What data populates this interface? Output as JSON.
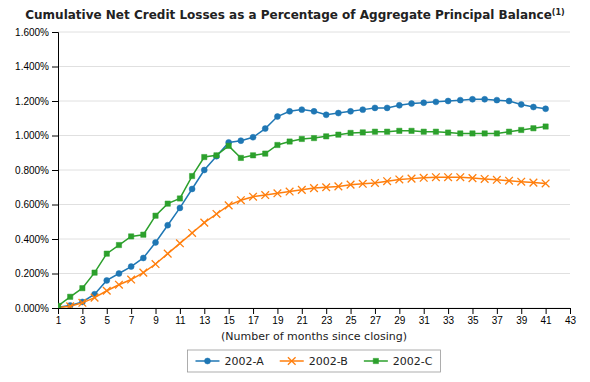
{
  "chart_data": {
    "type": "line",
    "title": "Cumulative Net Credit Losses as a Percentage of Aggregate Principal Balance",
    "annotations": [
      "(1)"
    ],
    "x_label": "(Number of months since closing)",
    "x": [
      1,
      2,
      3,
      4,
      5,
      6,
      7,
      8,
      9,
      10,
      11,
      12,
      13,
      14,
      15,
      16,
      17,
      18,
      19,
      20,
      21,
      22,
      23,
      24,
      25,
      26,
      27,
      28,
      29,
      30,
      31,
      32,
      33,
      34,
      35,
      36,
      37,
      38,
      39,
      40,
      41
    ],
    "series": [
      {
        "name": "2002-A",
        "marker": "circle",
        "values": [
          5e-05,
          0.00015,
          0.00035,
          0.0008,
          0.0016,
          0.002,
          0.0024,
          0.0029,
          0.0038,
          0.0048,
          0.0058,
          0.0069,
          0.008,
          0.0088,
          0.0096,
          0.0097,
          0.0099,
          0.0104,
          0.0111,
          0.0114,
          0.0115,
          0.0114,
          0.0112,
          0.0113,
          0.0114,
          0.0115,
          0.0116,
          0.0116,
          0.01175,
          0.01185,
          0.0119,
          0.01195,
          0.012,
          0.01205,
          0.0121,
          0.0121,
          0.01205,
          0.012,
          0.0118,
          0.01165,
          0.01155
        ]
      },
      {
        "name": "2002-B",
        "marker": "x",
        "values": [
          3e-05,
          0.0001,
          0.0003,
          0.0006,
          0.001,
          0.00135,
          0.00165,
          0.00205,
          0.00255,
          0.00315,
          0.00375,
          0.00435,
          0.00495,
          0.00545,
          0.00595,
          0.00625,
          0.00645,
          0.00655,
          0.00665,
          0.00675,
          0.00685,
          0.00695,
          0.007,
          0.00705,
          0.00715,
          0.0072,
          0.00725,
          0.00735,
          0.00745,
          0.0075,
          0.00755,
          0.00758,
          0.00758,
          0.00758,
          0.00753,
          0.00748,
          0.00743,
          0.00738,
          0.00732,
          0.00727,
          0.00722
        ]
      },
      {
        "name": "2002-C",
        "marker": "square",
        "values": [
          0.00012,
          0.00065,
          0.00115,
          0.00205,
          0.00315,
          0.00365,
          0.00415,
          0.00425,
          0.00535,
          0.00605,
          0.00635,
          0.00765,
          0.00875,
          0.00885,
          0.0094,
          0.0087,
          0.00885,
          0.00895,
          0.00945,
          0.00965,
          0.0098,
          0.00985,
          0.00995,
          0.01005,
          0.01015,
          0.01018,
          0.01022,
          0.01022,
          0.01027,
          0.01027,
          0.01022,
          0.01022,
          0.01017,
          0.01012,
          0.01012,
          0.01012,
          0.01012,
          0.01022,
          0.01032,
          0.01042,
          0.01052
        ]
      }
    ],
    "xlim": [
      1,
      43
    ],
    "xticks": [
      1,
      3,
      5,
      7,
      9,
      11,
      13,
      15,
      17,
      19,
      21,
      23,
      25,
      27,
      29,
      31,
      33,
      35,
      37,
      39,
      41,
      43
    ],
    "ylim": [
      0.0,
      0.016
    ],
    "yticks": [
      {
        "value": 0.0,
        "label": "0.000%"
      },
      {
        "value": 0.002,
        "label": "0.200%"
      },
      {
        "value": 0.004,
        "label": "0.400%"
      },
      {
        "value": 0.006,
        "label": "0.600%"
      },
      {
        "value": 0.008,
        "label": "0.800%"
      },
      {
        "value": 0.01,
        "label": "1.000%"
      },
      {
        "value": 0.012,
        "label": "1.200%"
      },
      {
        "value": 0.014,
        "label": "1.400%"
      },
      {
        "value": 0.016,
        "label": "1.600%"
      }
    ],
    "grid": true,
    "legend": "bottom"
  }
}
